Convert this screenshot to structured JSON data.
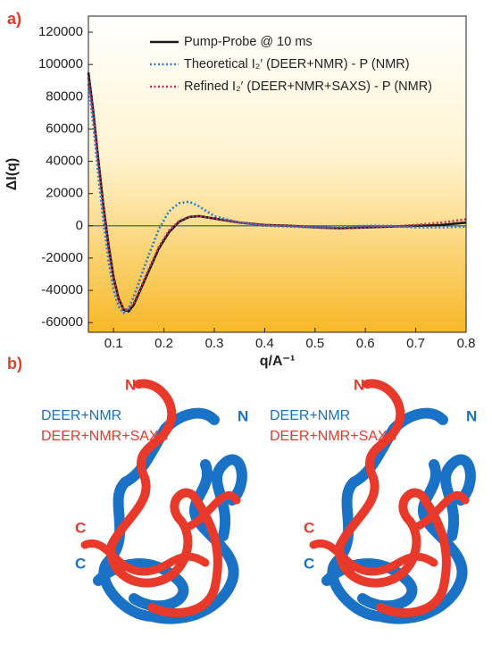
{
  "chart_data": {
    "type": "line",
    "panel_label": "a)",
    "x_label": "q/A⁻¹",
    "y_label": "ΔI(q)",
    "x": [
      0.05,
      0.06,
      0.07,
      0.08,
      0.09,
      0.1,
      0.11,
      0.12,
      0.13,
      0.14,
      0.15,
      0.17,
      0.19,
      0.21,
      0.23,
      0.25,
      0.27,
      0.3,
      0.35,
      0.4,
      0.45,
      0.5,
      0.55,
      0.6,
      0.65,
      0.7,
      0.75,
      0.8
    ],
    "series": [
      {
        "name": "Pump-Probe @ 10 ms",
        "color": "#1a1a1a",
        "style": "solid",
        "values": [
          95000,
          70000,
          40000,
          12000,
          -12000,
          -32000,
          -45000,
          -52000,
          -53000,
          -49000,
          -42000,
          -28000,
          -14000,
          -4000,
          2500,
          5500,
          6000,
          4500,
          2000,
          500,
          0,
          -1000,
          -1500,
          -1000,
          -500,
          0,
          500,
          2000
        ]
      },
      {
        "name": "Theoretical I₂′ (DEER+NMR) - P (NMR)",
        "color": "#2a7fd4",
        "style": "dotted",
        "values": [
          88000,
          62000,
          30000,
          2000,
          -22000,
          -40000,
          -50000,
          -54000,
          -51000,
          -44000,
          -35000,
          -18000,
          -2000,
          9000,
          14000,
          15000,
          12000,
          6000,
          2000,
          0,
          -500,
          -1000,
          -500,
          0,
          0,
          -1000,
          -1000,
          -500
        ]
      },
      {
        "name": "Refined I₂′ (DEER+NMR+SAXS) - P (NMR)",
        "color": "#c4305a",
        "style": "dotted",
        "values": [
          92000,
          68000,
          38000,
          10000,
          -14000,
          -33000,
          -46000,
          -52000,
          -52000,
          -48000,
          -41000,
          -27000,
          -13000,
          -3000,
          3000,
          5500,
          6000,
          4500,
          2000,
          500,
          0,
          -1000,
          -1500,
          -1000,
          -500,
          500,
          2000,
          4000
        ]
      }
    ],
    "xlim": [
      0.05,
      0.8
    ],
    "xticks": [
      0.1,
      0.2,
      0.3,
      0.4,
      0.5,
      0.6,
      0.7,
      0.8
    ],
    "ylim": [
      -66000,
      130000
    ],
    "yticks": [
      -60000,
      -40000,
      -20000,
      0,
      20000,
      40000,
      60000,
      80000,
      100000,
      120000
    ],
    "hlines": [
      0
    ],
    "grid": false,
    "legend": "top-right"
  },
  "panel_b": {
    "label": "b)",
    "views": [
      {
        "n_red": "N",
        "n_blue": "N",
        "legend_blue": "DEER+NMR",
        "legend_red": "DEER+NMR+SAXS",
        "c_red": "C",
        "c_blue": "C"
      },
      {
        "n_red": "N",
        "n_blue": "N",
        "legend_blue": "DEER+NMR",
        "legend_red": "DEER+NMR+SAXS",
        "c_red": "C",
        "c_blue": "C"
      }
    ]
  }
}
